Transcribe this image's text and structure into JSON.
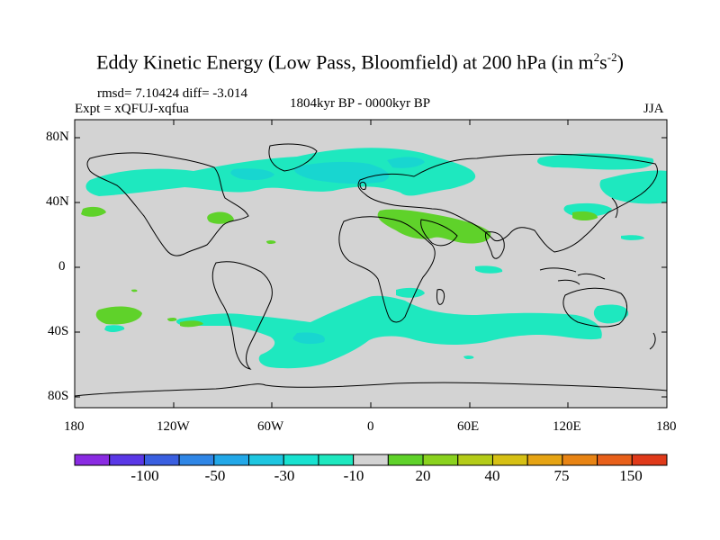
{
  "title": {
    "main": "Eddy Kinetic Energy (Low Pass, Bloomfield) at 200 hPa (in m",
    "sup1": "2",
    "mid": "s",
    "sup2": "-2",
    "close": ")"
  },
  "stats": {
    "rmsd": "rmsd= 7.10424 diff= -3.014",
    "expt": "Expt = xQFUJ-xqfua",
    "period": "1804kyr BP - 0000kyr BP",
    "season": "JJA"
  },
  "axes": {
    "y_ticks": [
      "80N",
      "40N",
      "0",
      "40S",
      "80S"
    ],
    "x_ticks": [
      "180",
      "120W",
      "60W",
      "0",
      "60E",
      "120E",
      "180"
    ]
  },
  "colorbar": {
    "colors": [
      "#8a2be2",
      "#5a38e6",
      "#3a5fe0",
      "#2f86e6",
      "#22a8e8",
      "#1ec6e0",
      "#18e2d0",
      "#1ee8bf",
      "#d3d3d3",
      "#5fd22a",
      "#8ad21e",
      "#b4cc18",
      "#d6c014",
      "#e6a414",
      "#e88414",
      "#e8601a",
      "#e03a1a"
    ],
    "labels": [
      "-100",
      "-50",
      "-30",
      "-10",
      "20",
      "40",
      "75",
      "150"
    ]
  },
  "map": {
    "background": "#d3d3d3",
    "negative_fill": "#1ee8bf",
    "negative_fill_strong": "#18d6d0",
    "positive_fill": "#5fd22a"
  }
}
